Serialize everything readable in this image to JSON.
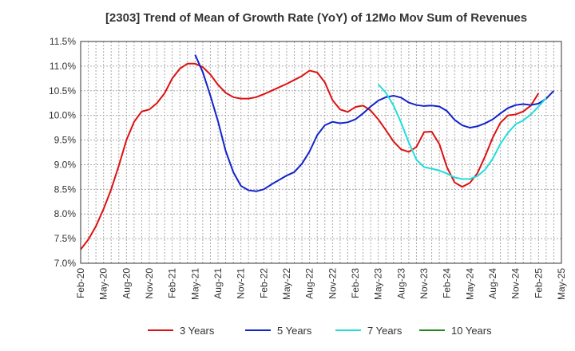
{
  "chart_data": {
    "type": "line",
    "title": "[2303]  Trend of Mean of Growth Rate (YoY) of 12Mo Mov Sum of Revenues",
    "xlabel": "",
    "ylabel": "",
    "ylim": [
      7.0,
      11.5
    ],
    "y_ticks": [
      7.0,
      7.5,
      8.0,
      8.5,
      9.0,
      9.5,
      10.0,
      10.5,
      11.0,
      11.5
    ],
    "y_tick_labels": [
      "7.0%",
      "7.5%",
      "8.0%",
      "8.5%",
      "9.0%",
      "9.5%",
      "10.0%",
      "10.5%",
      "11.0%",
      "11.5%"
    ],
    "x_tick_labels": [
      "Feb-20",
      "May-20",
      "Aug-20",
      "Nov-20",
      "Feb-21",
      "May-21",
      "Aug-21",
      "Nov-21",
      "Feb-22",
      "May-22",
      "Aug-22",
      "Nov-22",
      "Feb-23",
      "May-23",
      "Aug-23",
      "Nov-23",
      "Feb-24",
      "May-24",
      "Aug-24",
      "Nov-24",
      "Feb-25",
      "May-25"
    ],
    "x_range_months": [
      0,
      63
    ],
    "grid": true,
    "legend_position": "bottom",
    "series": [
      {
        "name": "3 Years",
        "color": "#dd1111",
        "start_month": 0,
        "values": [
          7.28,
          7.48,
          7.75,
          8.1,
          8.5,
          8.98,
          9.5,
          9.87,
          10.08,
          10.12,
          10.25,
          10.45,
          10.75,
          10.95,
          11.05,
          11.05,
          10.98,
          10.83,
          10.62,
          10.46,
          10.37,
          10.34,
          10.34,
          10.37,
          10.43,
          10.5,
          10.57,
          10.64,
          10.72,
          10.8,
          10.91,
          10.87,
          10.67,
          10.31,
          10.12,
          10.07,
          10.17,
          10.2,
          10.1,
          9.92,
          9.7,
          9.47,
          9.31,
          9.26,
          9.36,
          9.66,
          9.67,
          9.42,
          8.95,
          8.64,
          8.55,
          8.63,
          8.83,
          9.17,
          9.55,
          9.85,
          10.0,
          10.02,
          10.08,
          10.2,
          10.45
        ]
      },
      {
        "name": "5 Years",
        "color": "#1122cc",
        "start_month": 15,
        "values": [
          11.23,
          10.88,
          10.4,
          9.88,
          9.28,
          8.85,
          8.57,
          8.48,
          8.46,
          8.5,
          8.6,
          8.69,
          8.78,
          8.85,
          9.02,
          9.27,
          9.6,
          9.8,
          9.87,
          9.84,
          9.86,
          9.92,
          10.04,
          10.18,
          10.3,
          10.37,
          10.4,
          10.36,
          10.26,
          10.21,
          10.19,
          10.2,
          10.18,
          10.09,
          9.91,
          9.8,
          9.75,
          9.78,
          9.84,
          9.92,
          10.04,
          10.15,
          10.21,
          10.23,
          10.21,
          10.24,
          10.34,
          10.5
        ]
      },
      {
        "name": "7 Years",
        "color": "#22dddd",
        "start_month": 39,
        "values": [
          10.63,
          10.46,
          10.2,
          9.85,
          9.45,
          9.1,
          8.95,
          8.92,
          8.88,
          8.82,
          8.74,
          8.71,
          8.71,
          8.77,
          8.9,
          9.12,
          9.42,
          9.65,
          9.82,
          9.9,
          10.02,
          10.18,
          10.35
        ]
      },
      {
        "name": "10 Years",
        "color": "#228822",
        "start_month": 0,
        "values": []
      }
    ]
  }
}
